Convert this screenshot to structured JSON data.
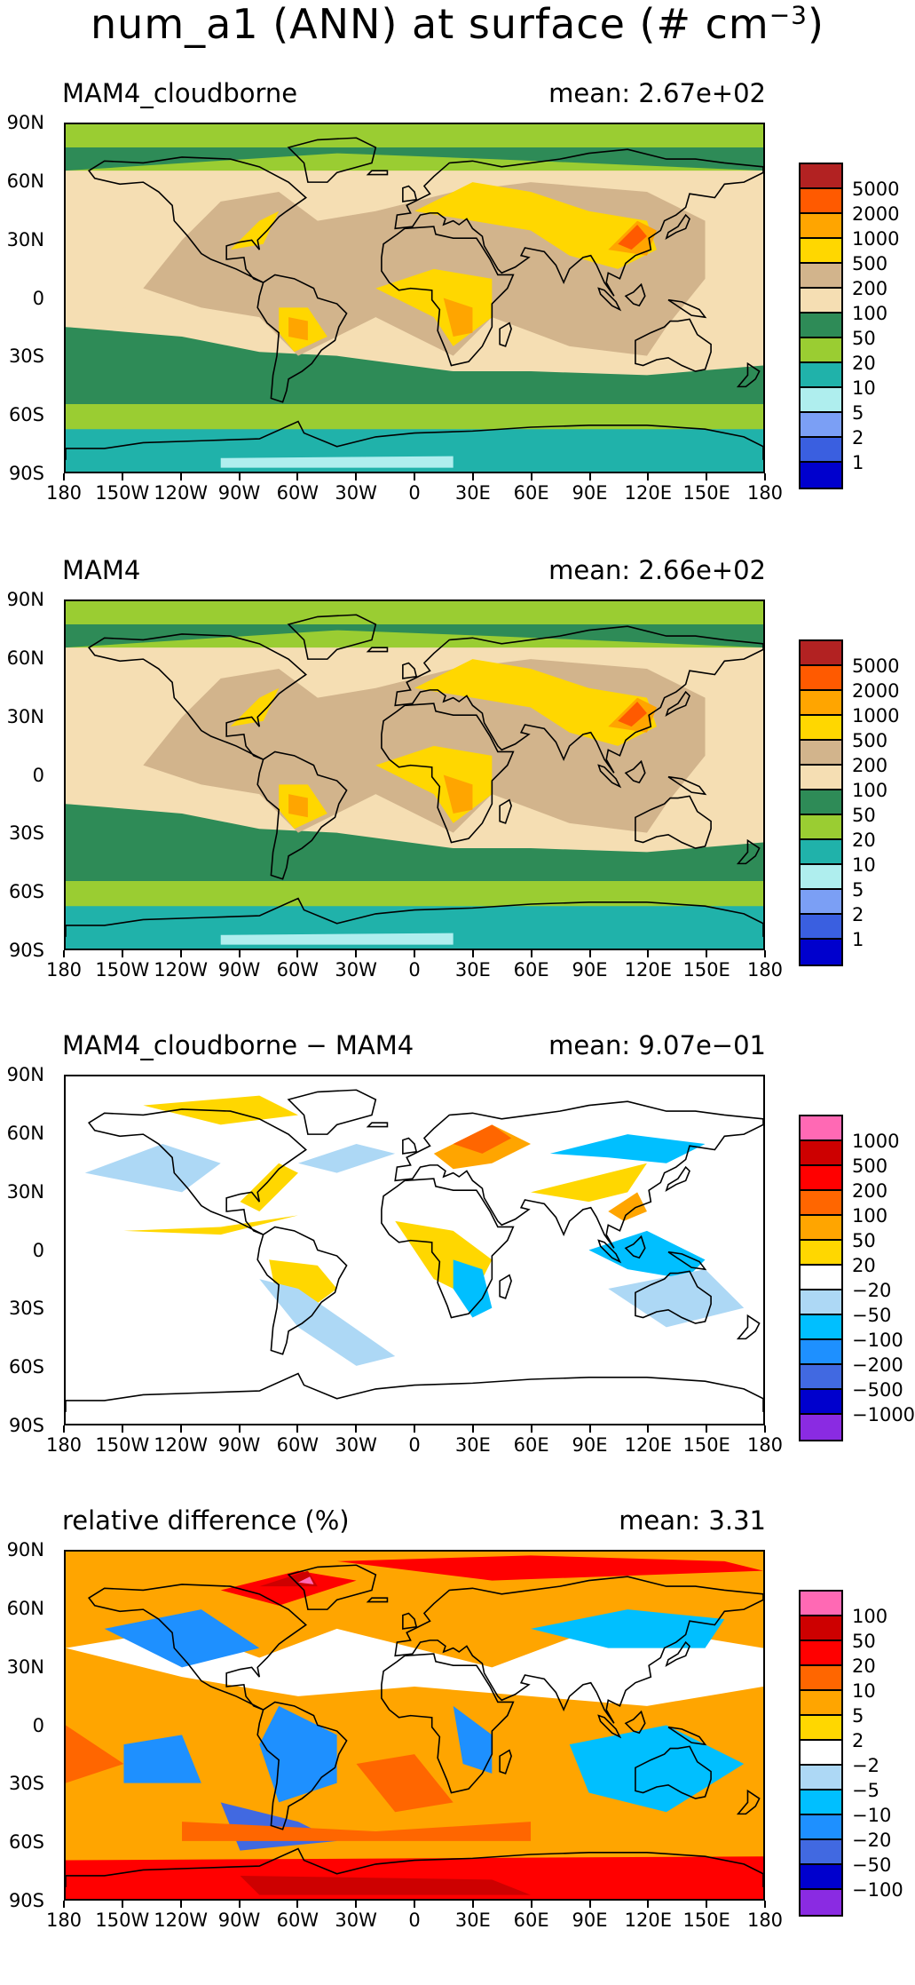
{
  "title": {
    "main": "num_a1 (ANN) at surface (# cm",
    "sup": "−3",
    "end": ")"
  },
  "lat_labels": [
    "90N",
    "60N",
    "30N",
    "0",
    "30S",
    "60S",
    "90S"
  ],
  "lon_labels": [
    "180",
    "150W",
    "120W",
    "90W",
    "60W",
    "30W",
    "0",
    "30E",
    "60E",
    "90E",
    "120E",
    "150E",
    "180"
  ],
  "panels": [
    {
      "title": "MAM4_cloudborne",
      "mean": "mean: 2.67e+02",
      "type": "abs",
      "levels": [
        "5000",
        "2000",
        "1000",
        "500",
        "200",
        "100",
        "50",
        "20",
        "10",
        "5",
        "2",
        "1"
      ],
      "colors": [
        "#b22222",
        "#ff5a00",
        "#ffa500",
        "#ffd700",
        "#d2b48c",
        "#f5deb3",
        "#2e8b57",
        "#9acd32",
        "#20b2aa",
        "#afeeee",
        "#7b9ff5",
        "#3a5fe0",
        "#0000cd"
      ]
    },
    {
      "title": "MAM4",
      "mean": "mean: 2.66e+02",
      "type": "abs",
      "levels": [
        "5000",
        "2000",
        "1000",
        "500",
        "200",
        "100",
        "50",
        "20",
        "10",
        "5",
        "2",
        "1"
      ],
      "colors": [
        "#b22222",
        "#ff5a00",
        "#ffa500",
        "#ffd700",
        "#d2b48c",
        "#f5deb3",
        "#2e8b57",
        "#9acd32",
        "#20b2aa",
        "#afeeee",
        "#7b9ff5",
        "#3a5fe0",
        "#0000cd"
      ]
    },
    {
      "title": "MAM4_cloudborne − MAM4",
      "mean": "mean: 9.07e−01",
      "type": "diff",
      "levels": [
        "1000",
        "500",
        "200",
        "100",
        "50",
        "20",
        "−20",
        "−50",
        "−100",
        "−200",
        "−500",
        "−1000"
      ],
      "colors": [
        "#ff69b4",
        "#cd0000",
        "#ff0000",
        "#ff6600",
        "#ffa500",
        "#ffd700",
        "#ffffff",
        "#add8f5",
        "#00bfff",
        "#1e90ff",
        "#4169e1",
        "#0000cd",
        "#8a2be2"
      ]
    },
    {
      "title": "relative difference (%)",
      "mean": "mean:   3.31",
      "type": "rel",
      "levels": [
        "100",
        "50",
        "20",
        "10",
        "5",
        "2",
        "−2",
        "−5",
        "−10",
        "−20",
        "−50",
        "−100"
      ],
      "colors": [
        "#ff69b4",
        "#cd0000",
        "#ff0000",
        "#ff6600",
        "#ffa500",
        "#ffd700",
        "#ffffff",
        "#add8f5",
        "#00bfff",
        "#1e90ff",
        "#4169e1",
        "#0000cd",
        "#8a2be2"
      ]
    }
  ]
}
